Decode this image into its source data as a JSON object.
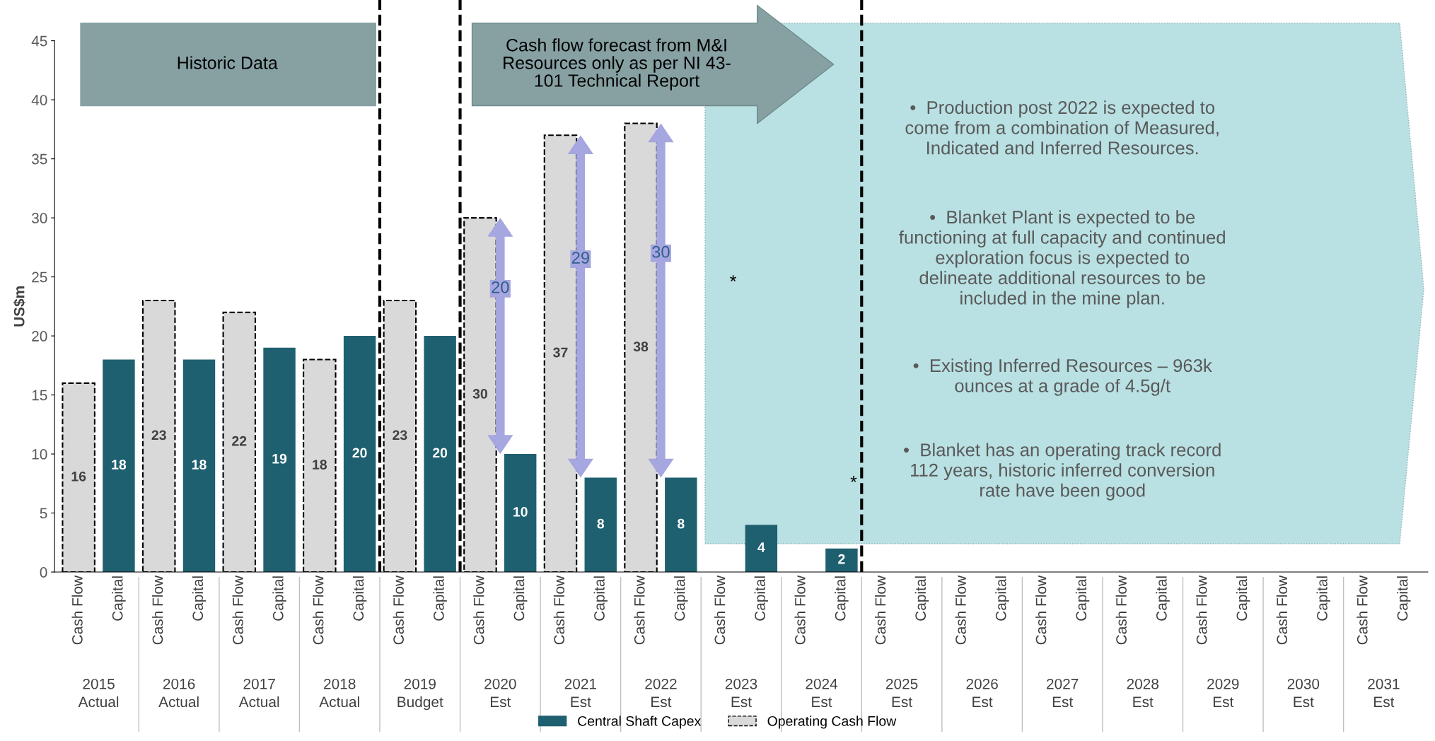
{
  "chart_data": {
    "type": "bar",
    "categories": [
      "Cash Flow",
      "Capital",
      "Cash Flow",
      "Capital",
      "Cash Flow",
      "Capital",
      "Cash Flow",
      "Capital",
      "Cash Flow",
      "Capital",
      "Cash Flow",
      "Capital",
      "Cash Flow",
      "Capital",
      "Cash Flow",
      "Capital",
      "Cash Flow",
      "Capital",
      "Cash Flow",
      "Capital",
      "Cash Flow",
      "Capital",
      "Cash Flow",
      "Capital",
      "Cash Flow",
      "Capital",
      "Cash Flow",
      "Capital",
      "Cash Flow",
      "Capital",
      "Cash Flow",
      "Capital",
      "Cash Flow",
      "Capital"
    ],
    "series": [
      {
        "name": "Central Shaft Capex",
        "color": "#1f6070",
        "values": [
          null,
          18,
          null,
          18,
          null,
          19,
          null,
          20,
          null,
          20,
          null,
          10,
          null,
          8,
          null,
          8,
          null,
          4,
          null,
          2,
          null,
          null,
          null,
          null,
          null,
          null,
          null,
          null,
          null,
          null,
          null,
          null,
          null,
          null
        ]
      },
      {
        "name": "Operating Cash Flow",
        "color": "#d9d9d9",
        "line_style": "dashed",
        "values": [
          16,
          null,
          23,
          null,
          22,
          null,
          18,
          null,
          23,
          null,
          30,
          null,
          37,
          null,
          38,
          null,
          null,
          null,
          null,
          null,
          null,
          null,
          null,
          null,
          null,
          null,
          null,
          null,
          null,
          null,
          null,
          null,
          null,
          null
        ]
      }
    ],
    "data_labels": true,
    "ylabel": "US$m",
    "ylim": [
      0,
      45
    ],
    "yticks": [
      0,
      5,
      10,
      15,
      20,
      25,
      30,
      35,
      40,
      45
    ],
    "grid": false,
    "legend": "bottom",
    "annotations": [
      "2015\nActual",
      "2016\nActual",
      "2017\nActual",
      "2018\nActual",
      "2019\nBudget",
      "2020\nEst",
      "2021\nEst",
      "2022\nEst",
      "2023\nEst",
      "2024\nEst",
      "2025\nEst",
      "2026\nEst",
      "2027\nEst",
      "2028\nEst",
      "2029\nEst",
      "2030\nEst",
      "2031\nEst",
      "Historic Data",
      "Cash flow forecast from M&I\nResources only as per NI 43-\n101 Technical Report",
      "•  Production post 2022 is expected to\ncome from a combination of Measured,\nIndicated and Inferred Resources.",
      "•  Blanket Plant is expected to be\nfunctioning at full capacity and continued\nexploration focus is expected to\ndelineate additional resources to be\nincluded in the mine plan.",
      "•  Existing Inferred Resources – 963k\nounces at a grade of 4.5g/t",
      "•  Blanket has an operating track record\n112 years, historic inferred conversion\nrate have been good",
      "*",
      "*",
      "20",
      "29",
      "30"
    ]
  }
}
